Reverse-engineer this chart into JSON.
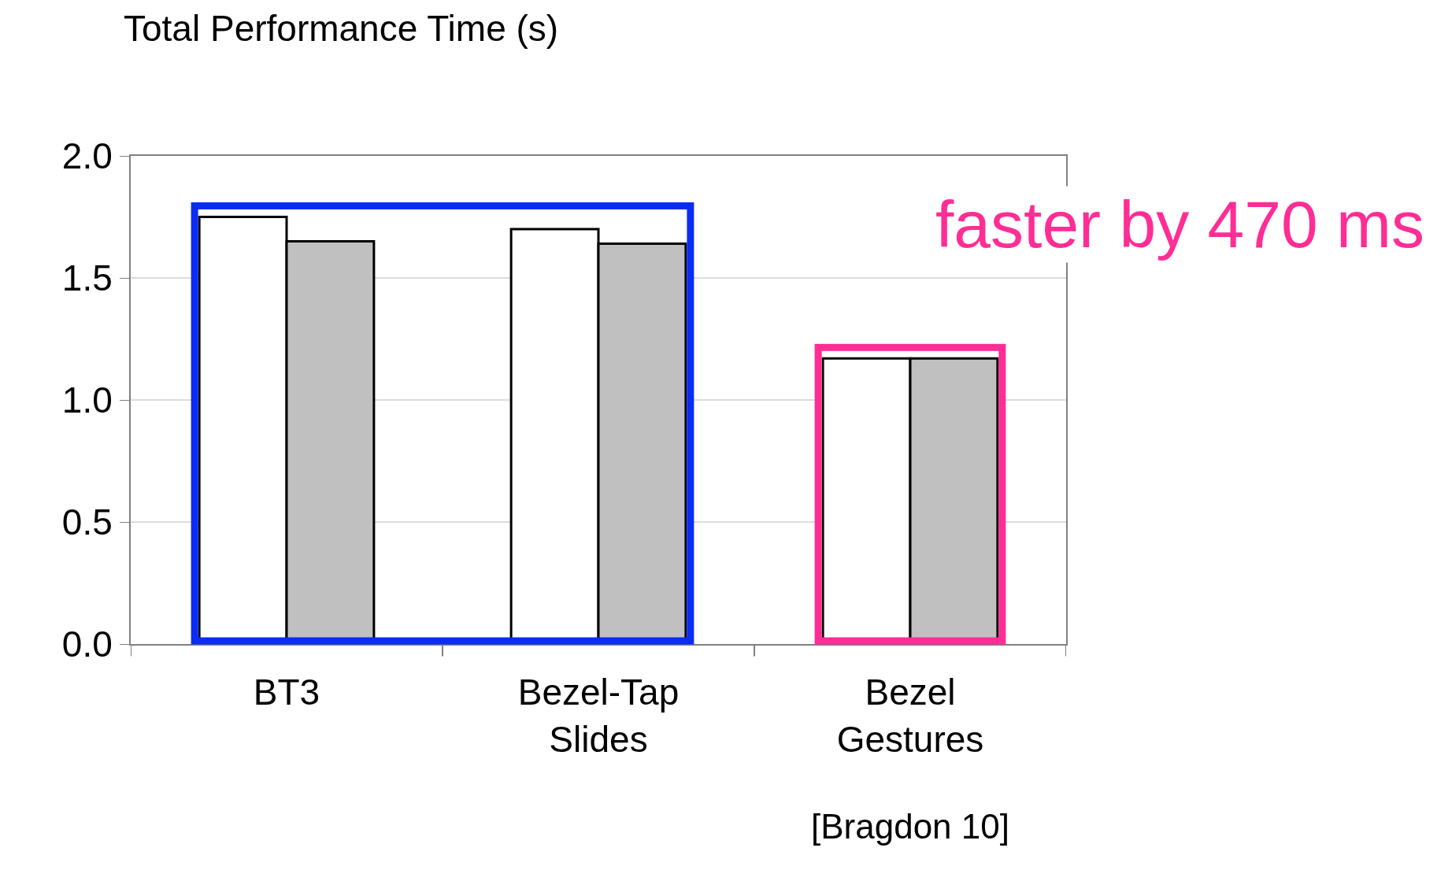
{
  "chart_data": {
    "type": "bar",
    "title": "Total Performance Time (s)",
    "categories": [
      "BT3",
      "Bezel-Tap Slides",
      "Bezel Gestures"
    ],
    "series": [
      {
        "color": "#ffffff",
        "values": [
          1.75,
          1.7,
          1.17
        ]
      },
      {
        "color": "#c0c0c0",
        "values": [
          1.65,
          1.64,
          1.17
        ]
      }
    ],
    "ylim": [
      0,
      2
    ],
    "yticks": [
      {
        "value": 0,
        "label": "0.0"
      },
      {
        "value": 0.5,
        "label": "0.5"
      },
      {
        "value": 1,
        "label": "1.0"
      },
      {
        "value": 1.5,
        "label": "1.5"
      },
      {
        "value": 2,
        "label": "2.0"
      }
    ],
    "grid": "y",
    "annotations": [
      "faster by 470 ms",
      "[Bragdon 10]"
    ]
  }
}
